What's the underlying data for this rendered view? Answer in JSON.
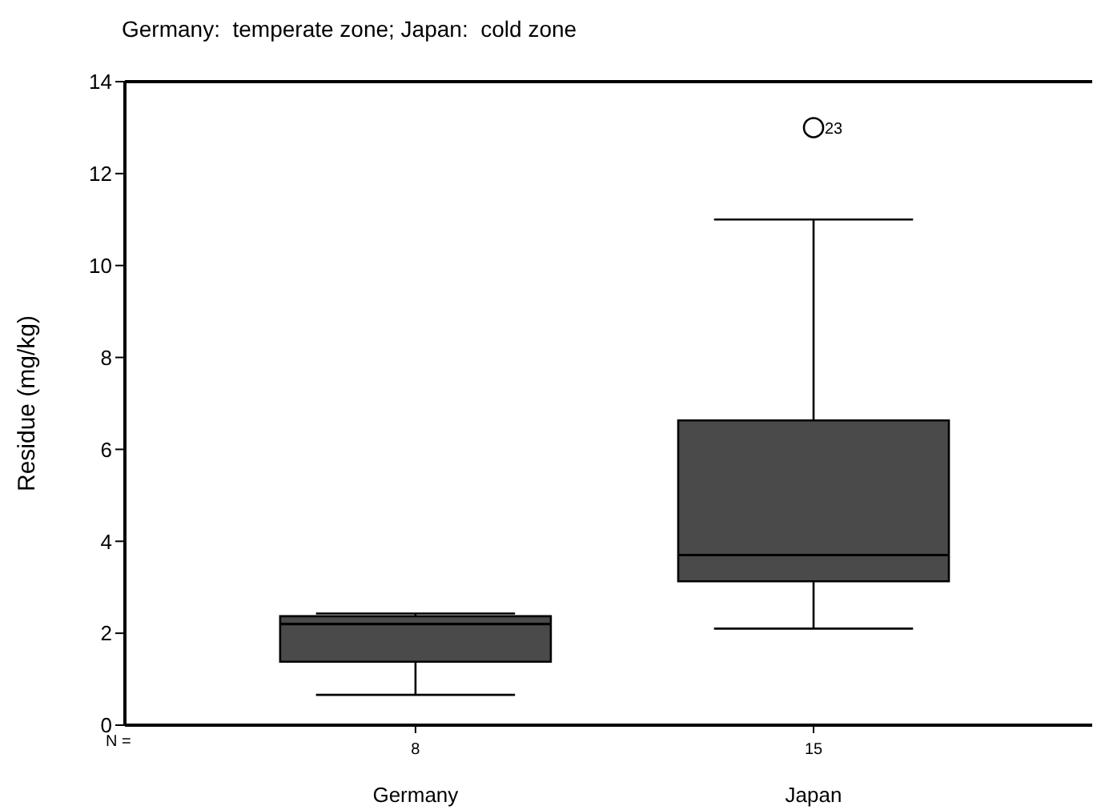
{
  "chart_data": {
    "type": "box",
    "title": "Germany:  temperate zone; Japan:  cold zone",
    "ylabel": "Residue (mg/kg)",
    "categories": [
      "Germany",
      "Japan"
    ],
    "color": "#4a4a4a",
    "boxes": [
      {
        "low": 0.66,
        "q1": 1.38,
        "median": 2.2,
        "q3": 2.37,
        "high": 2.43
      },
      {
        "low": 2.1,
        "q1": 3.13,
        "median": 3.7,
        "q3": 6.63,
        "high": 11,
        "outliers": [
          13
        ]
      }
    ],
    "ylim": [
      0,
      14
    ],
    "yticks": [
      0,
      2,
      4,
      6,
      8,
      10,
      12,
      14
    ],
    "annotations": [
      "N =",
      "8",
      "15",
      "23"
    ]
  }
}
